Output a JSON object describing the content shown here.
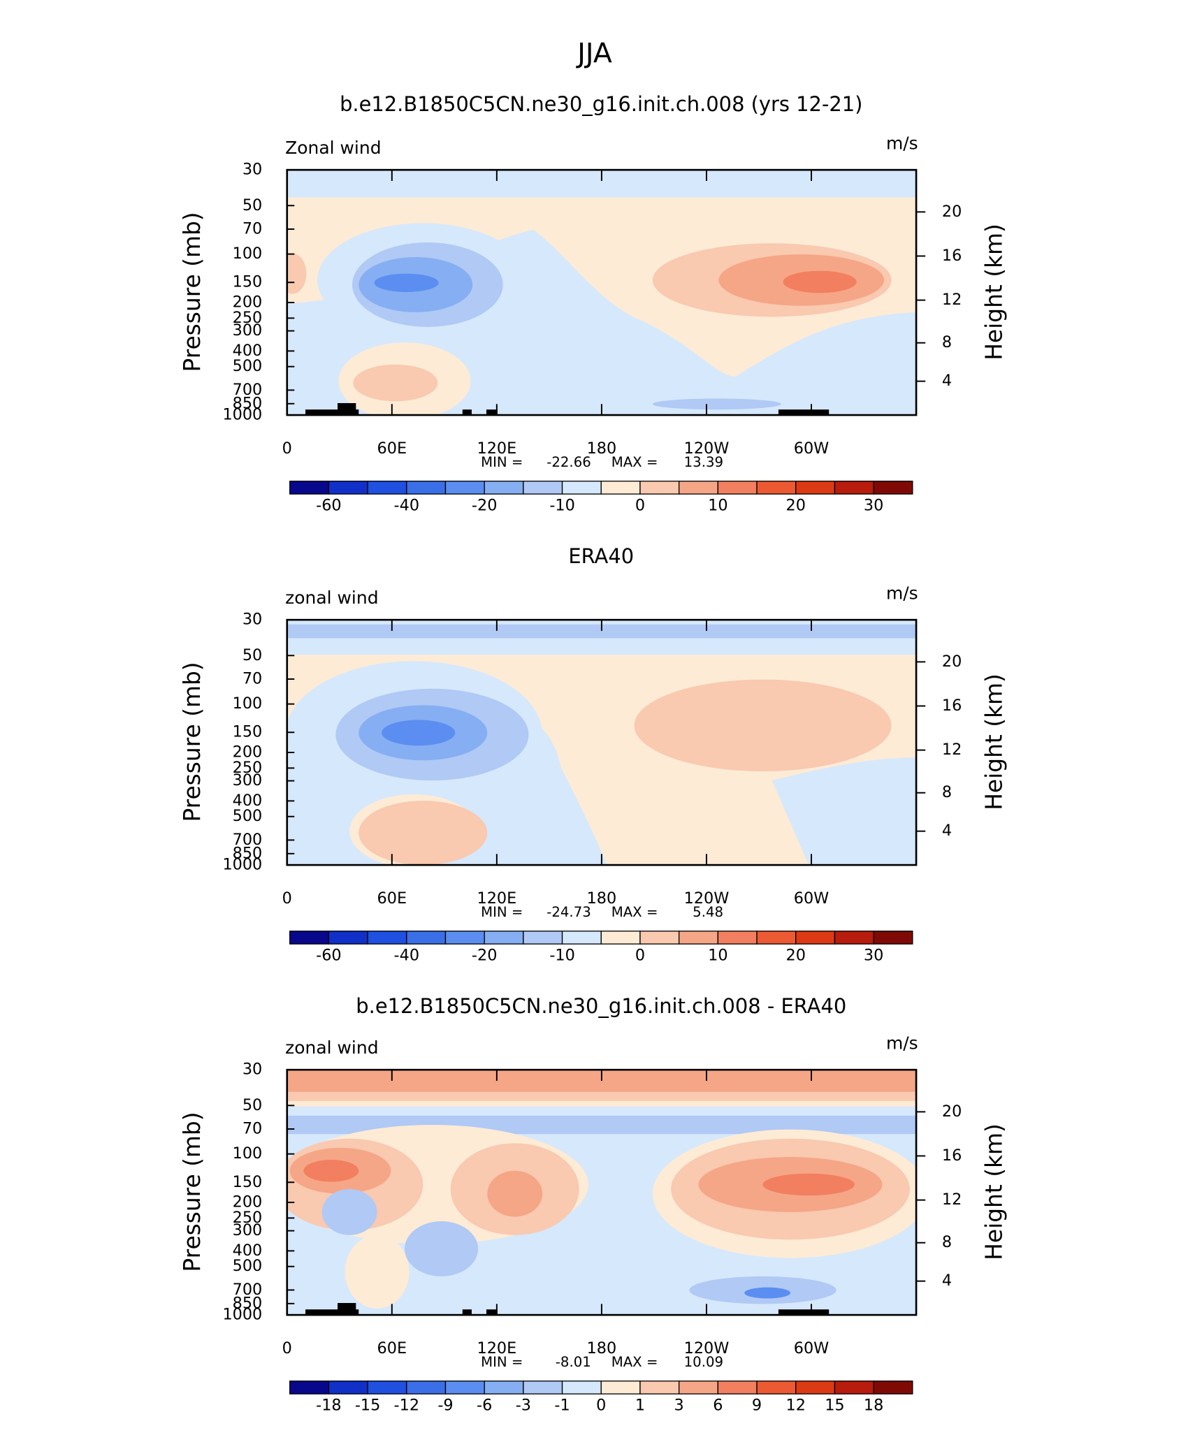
{
  "title": "JJA",
  "chart_data": [
    {
      "type": "contour",
      "title": "b.e12.B1850C5CN.ne30_g16.init.ch.008 (yrs 12-21)",
      "variable": "Zonal wind",
      "units": "m/s",
      "ylabel": "Pressure (mb)",
      "y2label": "Height (km)",
      "yscale": "log",
      "ylim": [
        1000,
        30
      ],
      "yticks": [
        30,
        50,
        70,
        100,
        150,
        200,
        250,
        300,
        400,
        500,
        700,
        850,
        1000
      ],
      "y2ticks": [
        4,
        8,
        12,
        16,
        20
      ],
      "xlim": [
        0,
        360
      ],
      "xticks": [
        0,
        {
          "value": 60,
          "label": "60E"
        },
        {
          "value": 120,
          "label": "120E"
        },
        180,
        {
          "value": 240,
          "label": "120W"
        },
        {
          "value": 300,
          "label": "60W"
        }
      ],
      "stats": {
        "min_label": "MIN =",
        "min": -22.66,
        "max_label": "MAX =",
        "max": 13.39
      },
      "colorbar": {
        "levels": [
          -60,
          null,
          -40,
          null,
          -20,
          null,
          -10,
          null,
          0,
          null,
          10,
          null,
          20,
          null,
          30
        ],
        "colors": [
          "#08088c",
          "#1030c8",
          "#2050e0",
          "#3b6fe8",
          "#5b8ef0",
          "#86aef2",
          "#b0c9f5",
          "#d6e8fb",
          "#fdebd6",
          "#f9c9b0",
          "#f5a687",
          "#f27f5f",
          "#ec5a33",
          "#dc3a14",
          "#b71c0c",
          "#7f0a05"
        ]
      }
    },
    {
      "type": "contour",
      "title": "ERA40",
      "variable": "zonal wind",
      "units": "m/s",
      "ylabel": "Pressure (mb)",
      "y2label": "Height (km)",
      "yscale": "log",
      "ylim": [
        1000,
        30
      ],
      "yticks": [
        30,
        50,
        70,
        100,
        150,
        200,
        250,
        300,
        400,
        500,
        700,
        850,
        1000
      ],
      "y2ticks": [
        4,
        8,
        12,
        16,
        20
      ],
      "xlim": [
        0,
        360
      ],
      "xticks": [
        0,
        {
          "value": 60,
          "label": "60E"
        },
        {
          "value": 120,
          "label": "120E"
        },
        180,
        {
          "value": 240,
          "label": "120W"
        },
        {
          "value": 300,
          "label": "60W"
        }
      ],
      "stats": {
        "min_label": "MIN =",
        "min": -24.73,
        "max_label": "MAX =",
        "max": 5.48
      },
      "colorbar": {
        "levels": [
          -60,
          null,
          -40,
          null,
          -20,
          null,
          -10,
          null,
          0,
          null,
          10,
          null,
          20,
          null,
          30
        ],
        "colors": [
          "#08088c",
          "#1030c8",
          "#2050e0",
          "#3b6fe8",
          "#5b8ef0",
          "#86aef2",
          "#b0c9f5",
          "#d6e8fb",
          "#fdebd6",
          "#f9c9b0",
          "#f5a687",
          "#f27f5f",
          "#ec5a33",
          "#dc3a14",
          "#b71c0c",
          "#7f0a05"
        ]
      }
    },
    {
      "type": "contour",
      "title": "b.e12.B1850C5CN.ne30_g16.init.ch.008 - ERA40",
      "variable": "zonal wind",
      "units": "m/s",
      "ylabel": "Pressure (mb)",
      "y2label": "Height (km)",
      "yscale": "log",
      "ylim": [
        1000,
        30
      ],
      "yticks": [
        30,
        50,
        70,
        100,
        150,
        200,
        250,
        300,
        400,
        500,
        700,
        850,
        1000
      ],
      "y2ticks": [
        4,
        8,
        12,
        16,
        20
      ],
      "xlim": [
        0,
        360
      ],
      "xticks": [
        0,
        {
          "value": 60,
          "label": "60E"
        },
        {
          "value": 120,
          "label": "120E"
        },
        180,
        {
          "value": 240,
          "label": "120W"
        },
        {
          "value": 300,
          "label": "60W"
        }
      ],
      "stats": {
        "min_label": "MIN =",
        "min": -8.01,
        "max_label": "MAX =",
        "max": 10.09
      },
      "colorbar": {
        "levels": [
          -18,
          -15,
          -12,
          -9,
          -6,
          -3,
          -1,
          0,
          1,
          3,
          6,
          9,
          12,
          15,
          18
        ],
        "colors": [
          "#08088c",
          "#1030c8",
          "#2050e0",
          "#3b6fe8",
          "#5b8ef0",
          "#86aef2",
          "#b0c9f5",
          "#d6e8fb",
          "#fdebd6",
          "#f9c9b0",
          "#f5a687",
          "#f27f5f",
          "#ec5a33",
          "#dc3a14",
          "#b71c0c",
          "#7f0a05"
        ]
      }
    }
  ]
}
